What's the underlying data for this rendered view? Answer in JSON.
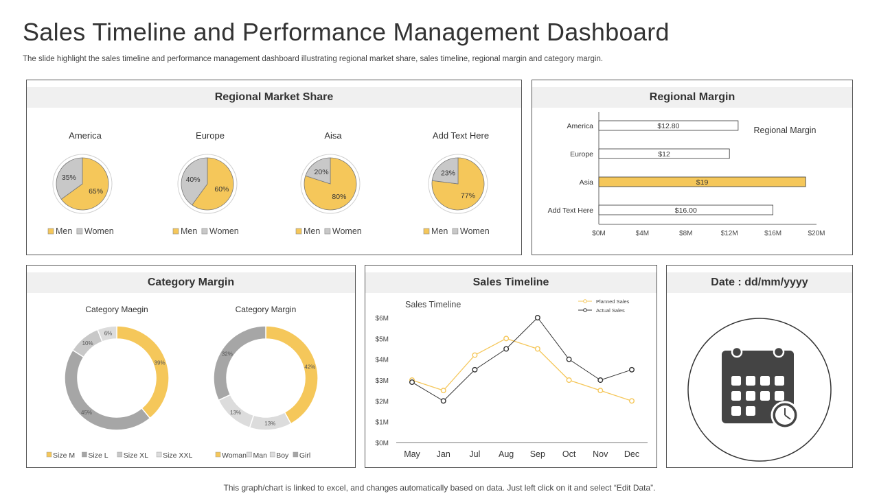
{
  "header": {
    "title": "Sales Timeline and Performance Management Dashboard",
    "subtitle": "The slide highlight the sales timeline and performance management dashboard illustrating regional market share, sales timeline, regional margin and category margin."
  },
  "footer": {
    "text": "This graph/chart is linked to excel, and changes automatically based on data. Just left click on it and select “Edit Data”."
  },
  "colors": {
    "yellow": "#f5c75a",
    "gray": "#c8c8c8",
    "darkgray": "#a6a6a6",
    "lightgray": "#dcdcdc",
    "line_dark": "#333333",
    "border": "#555555"
  },
  "panels": {
    "market": {
      "title": "Regional Market Share"
    },
    "margin": {
      "title": "Regional Margin"
    },
    "category": {
      "title": "Category Margin"
    },
    "timeline": {
      "title": "Sales Timeline"
    },
    "date": {
      "title": "Date : dd/mm/yyyy",
      "icon": "calendar-clock-icon"
    }
  },
  "chart_data": [
    {
      "type": "pie",
      "title": "America",
      "categories": [
        "Men",
        "Women"
      ],
      "values": [
        65,
        35
      ],
      "labels": [
        "65%",
        "35%"
      ],
      "legend": [
        "Men",
        "Women"
      ]
    },
    {
      "type": "pie",
      "title": "Europe",
      "categories": [
        "Men",
        "Women"
      ],
      "values": [
        60,
        40
      ],
      "labels": [
        "60%",
        "40%"
      ],
      "legend": [
        "Men",
        "Women"
      ]
    },
    {
      "type": "pie",
      "title": "Aisa",
      "categories": [
        "Men",
        "Women"
      ],
      "values": [
        80,
        20
      ],
      "labels": [
        "80%",
        "20%"
      ],
      "legend": [
        "Men",
        "Women"
      ]
    },
    {
      "type": "pie",
      "title": "Add Text Here",
      "categories": [
        "Men",
        "Women"
      ],
      "values": [
        77,
        23
      ],
      "labels": [
        "77%",
        "23%"
      ],
      "legend": [
        "Men",
        "Women"
      ]
    },
    {
      "type": "bar",
      "orientation": "horizontal",
      "title": "Regional  Margin",
      "categories": [
        "America",
        "Europe",
        "Asia",
        "Add Text Here"
      ],
      "values": [
        12.8,
        12,
        19,
        16
      ],
      "value_labels": [
        "$12.80",
        "$12",
        "$19",
        "$16.00"
      ],
      "highlight": "Asia",
      "xlim": [
        0,
        20
      ],
      "xticks": [
        "$0M",
        "$4M",
        "$8M",
        "$12M",
        "$16M",
        "$20M"
      ]
    },
    {
      "type": "pie",
      "title": "Category Maegin",
      "categories": [
        "Size M",
        "Size L",
        "Size XL",
        "Size XXL"
      ],
      "values": [
        39,
        45,
        10,
        6
      ],
      "labels": [
        "39%",
        "45%",
        "10%",
        "6%"
      ],
      "legend": [
        "Size M",
        "Size L",
        "Size XL",
        "Size XXL"
      ]
    },
    {
      "type": "pie",
      "title": "Category Margin",
      "categories": [
        "Woman",
        "Man",
        "Boy",
        "Girl"
      ],
      "values": [
        42,
        13,
        13,
        32
      ],
      "labels": [
        "42%",
        "13%",
        "13%",
        "32%"
      ],
      "legend": [
        "Woman",
        "Man",
        "Boy",
        "Girl"
      ]
    },
    {
      "type": "line",
      "title": "Sales Timeline",
      "categories": [
        "May",
        "Jan",
        "Jul",
        "Aug",
        "Sep",
        "Oct",
        "Nov",
        "Dec"
      ],
      "series": [
        {
          "name": "Planned Sales",
          "values": [
            3.0,
            2.5,
            4.2,
            5.0,
            4.5,
            3.0,
            2.5,
            2.0
          ]
        },
        {
          "name": "Actual Sales",
          "values": [
            2.9,
            2.0,
            3.5,
            4.5,
            6.0,
            4.0,
            3.0,
            3.5
          ]
        }
      ],
      "ylim": [
        0,
        6
      ],
      "yticks": [
        "$0M",
        "$1M",
        "$2M",
        "$3M",
        "$4M",
        "$5M",
        "$6M"
      ],
      "legend_position": "top-right"
    }
  ]
}
